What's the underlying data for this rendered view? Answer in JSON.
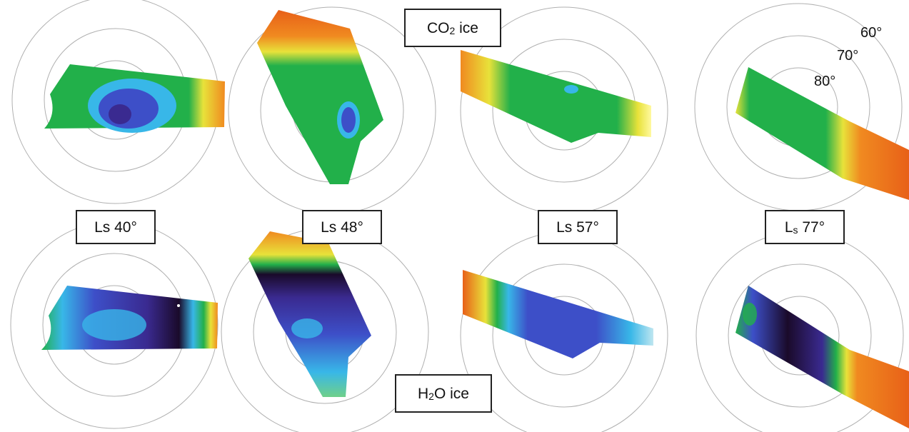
{
  "labels": {
    "co2_main": "CO",
    "co2_sub": "2",
    "co2_tail": " ice",
    "h2o_main": "H",
    "h2o_sub": "2",
    "h2o_tail": "O ice",
    "ls40": "Ls 40°",
    "ls48": "Ls 48°",
    "ls57": "Ls 57°",
    "ls77_main": "L",
    "ls77_sub": "s",
    "ls77_tail": " 77°",
    "lat60": "60°",
    "lat70": "70°",
    "lat80": "80°"
  },
  "colors": {
    "ring": "#b0b0b0",
    "green": "#22b04a",
    "cyan": "#38b7e8",
    "blue": "#3d4fc8",
    "violet": "#3a2a90",
    "dark": "#1a0a2a",
    "yellow": "#e8e23a",
    "orange": "#f08a20",
    "red_orange": "#e86018"
  }
}
